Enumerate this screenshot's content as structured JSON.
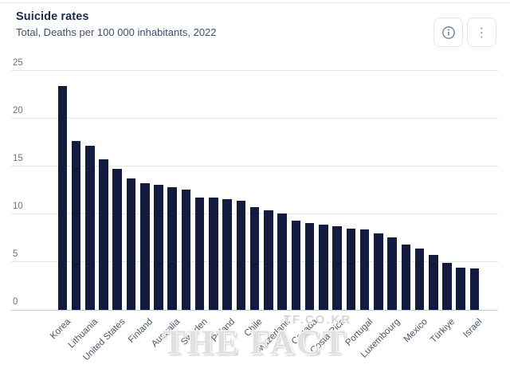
{
  "header": {
    "title": "Suicide rates",
    "subtitle": "Total, Deaths per 100 000 inhabitants, 2022",
    "info_icon": "info-circle-icon",
    "menu_icon": "kebab-menu-icon",
    "menu_glyph": "⋮"
  },
  "watermark": {
    "small": "TF.CO.KR",
    "large": "THE FACT"
  },
  "chart_data": {
    "type": "bar",
    "title": "Suicide rates",
    "subtitle": "Total, Deaths per 100 000 inhabitants, 2022",
    "ylabel": "Deaths per 100 000 inhabitants",
    "year": "2022",
    "ylim": [
      0,
      25
    ],
    "yticks": [
      0,
      5,
      10,
      15,
      20,
      25
    ],
    "grid": true,
    "bar_color": "#131b3e",
    "note": "only every second bar carries a country label in the axis",
    "bars": [
      {
        "label": "Korea",
        "value": 23.4
      },
      {
        "label": "",
        "value": 17.6
      },
      {
        "label": "Lithuania",
        "value": 17.1
      },
      {
        "label": "",
        "value": 15.7
      },
      {
        "label": "United States",
        "value": 14.7
      },
      {
        "label": "",
        "value": 13.7
      },
      {
        "label": "Finland",
        "value": 13.2
      },
      {
        "label": "",
        "value": 13.1
      },
      {
        "label": "Australia",
        "value": 12.8
      },
      {
        "label": "",
        "value": 12.6
      },
      {
        "label": "Sweden",
        "value": 11.7
      },
      {
        "label": "",
        "value": 11.7
      },
      {
        "label": "Poland",
        "value": 11.6
      },
      {
        "label": "",
        "value": 11.4
      },
      {
        "label": "Chile",
        "value": 10.7
      },
      {
        "label": "",
        "value": 10.4
      },
      {
        "label": "Switzerland",
        "value": 10.1
      },
      {
        "label": "",
        "value": 9.3
      },
      {
        "label": "Canada",
        "value": 9.1
      },
      {
        "label": "",
        "value": 8.9
      },
      {
        "label": "Costa Rica",
        "value": 8.7
      },
      {
        "label": "",
        "value": 8.5
      },
      {
        "label": "Portugal",
        "value": 8.4
      },
      {
        "label": "",
        "value": 8.0
      },
      {
        "label": "Luxembourg",
        "value": 7.6
      },
      {
        "label": "",
        "value": 6.8
      },
      {
        "label": "Mexico",
        "value": 6.4
      },
      {
        "label": "",
        "value": 5.7
      },
      {
        "label": "Türkiye",
        "value": 4.9
      },
      {
        "label": "",
        "value": 4.4
      },
      {
        "label": "Israel",
        "value": 4.3
      }
    ]
  }
}
